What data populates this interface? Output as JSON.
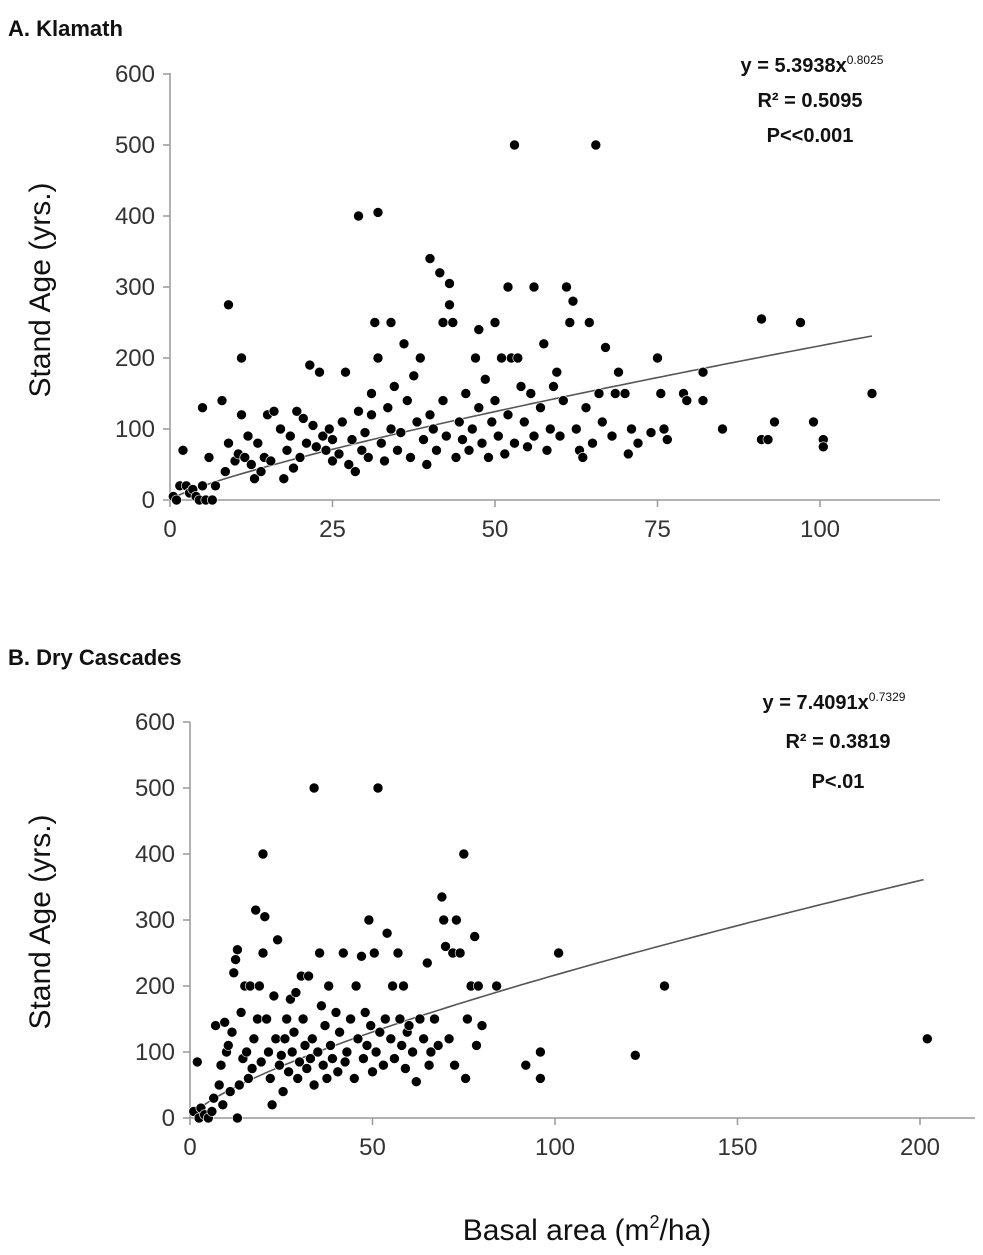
{
  "chart_data": [
    {
      "type": "scatter",
      "title": "A. Klamath",
      "ylabel": "Stand Age (yrs.)",
      "xlabel": "",
      "xlim": [
        0,
        115
      ],
      "ylim": [
        0,
        600
      ],
      "xticks": [
        0,
        25,
        50,
        75,
        100
      ],
      "yticks": [
        0,
        100,
        200,
        300,
        400,
        500,
        600
      ],
      "annotation": {
        "equation_base": "y = 5.3938x",
        "equation_exp": "0.8025",
        "r2": "R² = 0.5095",
        "p": "P<<0.001"
      },
      "fit": {
        "a": 5.3938,
        "b": 0.8025,
        "x_range": [
          0.5,
          108
        ]
      },
      "points": [
        [
          0.5,
          5
        ],
        [
          1,
          0
        ],
        [
          1.5,
          20
        ],
        [
          2,
          70
        ],
        [
          2.5,
          20
        ],
        [
          3,
          10
        ],
        [
          3.5,
          15
        ],
        [
          4,
          5
        ],
        [
          4.5,
          0
        ],
        [
          5,
          130
        ],
        [
          5,
          20
        ],
        [
          5.5,
          0
        ],
        [
          6,
          60
        ],
        [
          6.5,
          0
        ],
        [
          7,
          20
        ],
        [
          8,
          140
        ],
        [
          8.5,
          40
        ],
        [
          9,
          275
        ],
        [
          9,
          80
        ],
        [
          10,
          55
        ],
        [
          10.5,
          65
        ],
        [
          11,
          200
        ],
        [
          11,
          120
        ],
        [
          11.5,
          60
        ],
        [
          12,
          90
        ],
        [
          12.5,
          50
        ],
        [
          13,
          30
        ],
        [
          13.5,
          80
        ],
        [
          14,
          40
        ],
        [
          14.5,
          60
        ],
        [
          15,
          120
        ],
        [
          15.5,
          55
        ],
        [
          16,
          125
        ],
        [
          17,
          100
        ],
        [
          17.5,
          30
        ],
        [
          18,
          70
        ],
        [
          18.5,
          90
        ],
        [
          19,
          45
        ],
        [
          19.5,
          125
        ],
        [
          20,
          60
        ],
        [
          20.5,
          115
        ],
        [
          21,
          80
        ],
        [
          21.5,
          190
        ],
        [
          22,
          105
        ],
        [
          22.5,
          75
        ],
        [
          23,
          180
        ],
        [
          23.5,
          90
        ],
        [
          24,
          70
        ],
        [
          24.5,
          100
        ],
        [
          25,
          55
        ],
        [
          25,
          85
        ],
        [
          26,
          65
        ],
        [
          26.5,
          110
        ],
        [
          27,
          180
        ],
        [
          27.5,
          50
        ],
        [
          28,
          85
        ],
        [
          28.5,
          40
        ],
        [
          29,
          400
        ],
        [
          29,
          125
        ],
        [
          29.5,
          70
        ],
        [
          30,
          95
        ],
        [
          30.5,
          60
        ],
        [
          31,
          150
        ],
        [
          31,
          120
        ],
        [
          31.5,
          250
        ],
        [
          32,
          405
        ],
        [
          32,
          200
        ],
        [
          32.5,
          80
        ],
        [
          33,
          55
        ],
        [
          33.5,
          130
        ],
        [
          34,
          250
        ],
        [
          34,
          100
        ],
        [
          34.5,
          160
        ],
        [
          35,
          70
        ],
        [
          35.5,
          95
        ],
        [
          36,
          220
        ],
        [
          36.5,
          140
        ],
        [
          37,
          60
        ],
        [
          37.5,
          175
        ],
        [
          38,
          110
        ],
        [
          38.5,
          200
        ],
        [
          39,
          85
        ],
        [
          39.5,
          50
        ],
        [
          40,
          340
        ],
        [
          40,
          120
        ],
        [
          40.5,
          100
        ],
        [
          41,
          70
        ],
        [
          41.5,
          320
        ],
        [
          42,
          250
        ],
        [
          42,
          140
        ],
        [
          42.5,
          90
        ],
        [
          43,
          305
        ],
        [
          43,
          275
        ],
        [
          43.5,
          250
        ],
        [
          44,
          60
        ],
        [
          44.5,
          110
        ],
        [
          45,
          85
        ],
        [
          45.5,
          150
        ],
        [
          46,
          70
        ],
        [
          46.5,
          100
        ],
        [
          47,
          200
        ],
        [
          47.5,
          240
        ],
        [
          47.5,
          130
        ],
        [
          48,
          80
        ],
        [
          48.5,
          170
        ],
        [
          49,
          60
        ],
        [
          49.5,
          110
        ],
        [
          50,
          250
        ],
        [
          50,
          140
        ],
        [
          50.5,
          90
        ],
        [
          51,
          200
        ],
        [
          51.5,
          65
        ],
        [
          52,
          120
        ],
        [
          52,
          300
        ],
        [
          52.5,
          200
        ],
        [
          53,
          80
        ],
        [
          53,
          500
        ],
        [
          53.5,
          200
        ],
        [
          54,
          160
        ],
        [
          54.5,
          110
        ],
        [
          55,
          75
        ],
        [
          55.5,
          150
        ],
        [
          56,
          300
        ],
        [
          56,
          90
        ],
        [
          57,
          130
        ],
        [
          57.5,
          220
        ],
        [
          58,
          70
        ],
        [
          58.5,
          100
        ],
        [
          59,
          160
        ],
        [
          59.5,
          180
        ],
        [
          60,
          90
        ],
        [
          60.5,
          140
        ],
        [
          61,
          300
        ],
        [
          61.5,
          250
        ],
        [
          62,
          280
        ],
        [
          62.5,
          100
        ],
        [
          63,
          70
        ],
        [
          63.5,
          60
        ],
        [
          64,
          130
        ],
        [
          64.5,
          250
        ],
        [
          65,
          80
        ],
        [
          65.5,
          500
        ],
        [
          66,
          150
        ],
        [
          66.5,
          110
        ],
        [
          67,
          215
        ],
        [
          68,
          90
        ],
        [
          68.5,
          150
        ],
        [
          69,
          180
        ],
        [
          70,
          150
        ],
        [
          70.5,
          65
        ],
        [
          71,
          100
        ],
        [
          72,
          80
        ],
        [
          74,
          95
        ],
        [
          75,
          200
        ],
        [
          75.5,
          150
        ],
        [
          76,
          100
        ],
        [
          76.5,
          85
        ],
        [
          79,
          150
        ],
        [
          79.5,
          140
        ],
        [
          82,
          180
        ],
        [
          82,
          140
        ],
        [
          85,
          100
        ],
        [
          91,
          255
        ],
        [
          91,
          85
        ],
        [
          92,
          85
        ],
        [
          93,
          110
        ],
        [
          97,
          250
        ],
        [
          99,
          110
        ],
        [
          100.5,
          85
        ],
        [
          100.5,
          75
        ],
        [
          108,
          150
        ]
      ]
    },
    {
      "type": "scatter",
      "title": "B.  Dry Cascades",
      "ylabel": "Stand Age (yrs.)",
      "xlabel_base": "Basal area (m",
      "xlabel_sup": "2",
      "xlabel_tail": "/ha)",
      "xlim": [
        0,
        215
      ],
      "ylim": [
        0,
        600
      ],
      "xticks": [
        0,
        50,
        100,
        150,
        200
      ],
      "yticks": [
        0,
        100,
        200,
        300,
        400,
        500,
        600
      ],
      "annotation": {
        "equation_base": "y = 7.4091x",
        "equation_exp": "0.7329",
        "r2": "R² = 0.3819",
        "p": "P<.01"
      },
      "fit": {
        "a": 7.4091,
        "b": 0.7329,
        "x_range": [
          0.5,
          201
        ]
      },
      "points": [
        [
          1,
          10
        ],
        [
          2,
          85
        ],
        [
          2.5,
          0
        ],
        [
          3,
          15
        ],
        [
          4,
          5
        ],
        [
          5,
          0
        ],
        [
          6,
          10
        ],
        [
          6.5,
          30
        ],
        [
          7,
          140
        ],
        [
          8,
          50
        ],
        [
          8.5,
          80
        ],
        [
          9,
          20
        ],
        [
          9.5,
          145
        ],
        [
          10,
          100
        ],
        [
          10.5,
          110
        ],
        [
          11,
          40
        ],
        [
          11.5,
          130
        ],
        [
          12,
          220
        ],
        [
          12.5,
          240
        ],
        [
          13,
          255
        ],
        [
          13,
          0
        ],
        [
          13.5,
          50
        ],
        [
          14,
          160
        ],
        [
          14.5,
          90
        ],
        [
          15,
          200
        ],
        [
          15.5,
          100
        ],
        [
          16,
          60
        ],
        [
          16.5,
          200
        ],
        [
          17,
          75
        ],
        [
          17.5,
          120
        ],
        [
          18,
          315
        ],
        [
          18.5,
          150
        ],
        [
          19,
          200
        ],
        [
          19.5,
          85
        ],
        [
          20,
          400
        ],
        [
          20,
          250
        ],
        [
          20.5,
          305
        ],
        [
          21,
          150
        ],
        [
          21.5,
          100
        ],
        [
          22,
          60
        ],
        [
          22.5,
          20
        ],
        [
          23,
          185
        ],
        [
          23.5,
          120
        ],
        [
          24,
          270
        ],
        [
          24.5,
          80
        ],
        [
          25,
          95
        ],
        [
          25.5,
          40
        ],
        [
          26,
          120
        ],
        [
          26.5,
          150
        ],
        [
          27,
          70
        ],
        [
          27.5,
          180
        ],
        [
          28,
          100
        ],
        [
          28.5,
          130
        ],
        [
          29,
          190
        ],
        [
          29.5,
          60
        ],
        [
          30,
          85
        ],
        [
          30.5,
          215
        ],
        [
          31,
          150
        ],
        [
          31.5,
          110
        ],
        [
          32,
          75
        ],
        [
          32.5,
          215
        ],
        [
          33,
          90
        ],
        [
          33.5,
          120
        ],
        [
          34,
          500
        ],
        [
          34,
          50
        ],
        [
          35,
          100
        ],
        [
          35.5,
          250
        ],
        [
          36,
          170
        ],
        [
          36.5,
          80
        ],
        [
          37,
          140
        ],
        [
          37.5,
          60
        ],
        [
          38,
          200
        ],
        [
          38.5,
          110
        ],
        [
          39,
          90
        ],
        [
          40,
          160
        ],
        [
          40.5,
          70
        ],
        [
          41,
          130
        ],
        [
          42,
          250
        ],
        [
          42.5,
          85
        ],
        [
          43,
          100
        ],
        [
          44,
          150
        ],
        [
          45,
          60
        ],
        [
          45.5,
          200
        ],
        [
          46,
          120
        ],
        [
          47,
          245
        ],
        [
          47.5,
          90
        ],
        [
          48,
          160
        ],
        [
          48.5,
          110
        ],
        [
          49,
          300
        ],
        [
          49.5,
          140
        ],
        [
          50,
          70
        ],
        [
          50.5,
          250
        ],
        [
          51,
          100
        ],
        [
          51.5,
          500
        ],
        [
          52,
          130
        ],
        [
          53,
          80
        ],
        [
          53.5,
          150
        ],
        [
          54,
          280
        ],
        [
          55,
          120
        ],
        [
          55.5,
          200
        ],
        [
          56,
          90
        ],
        [
          57,
          250
        ],
        [
          57.5,
          150
        ],
        [
          58,
          110
        ],
        [
          58.5,
          200
        ],
        [
          59,
          75
        ],
        [
          59.5,
          130
        ],
        [
          60,
          140
        ],
        [
          61,
          100
        ],
        [
          62,
          55
        ],
        [
          63,
          150
        ],
        [
          64,
          120
        ],
        [
          65,
          235
        ],
        [
          65.5,
          80
        ],
        [
          66,
          100
        ],
        [
          67,
          150
        ],
        [
          68,
          110
        ],
        [
          69,
          335
        ],
        [
          69.5,
          300
        ],
        [
          70,
          260
        ],
        [
          71,
          120
        ],
        [
          72,
          250
        ],
        [
          72.5,
          80
        ],
        [
          73,
          300
        ],
        [
          74,
          250
        ],
        [
          75,
          400
        ],
        [
          75.5,
          60
        ],
        [
          76,
          150
        ],
        [
          77,
          200
        ],
        [
          78,
          275
        ],
        [
          78.5,
          110
        ],
        [
          79,
          200
        ],
        [
          80,
          140
        ],
        [
          84,
          200
        ],
        [
          92,
          80
        ],
        [
          96,
          100
        ],
        [
          96,
          60
        ],
        [
          101,
          250
        ],
        [
          122,
          95
        ],
        [
          130,
          200
        ],
        [
          202,
          120
        ]
      ]
    }
  ]
}
